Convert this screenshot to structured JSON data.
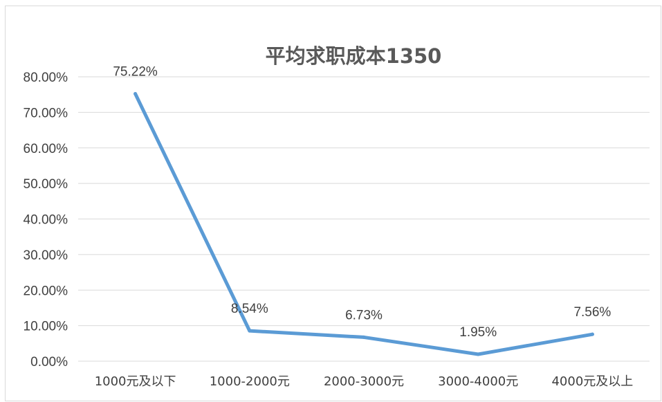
{
  "chart_data": {
    "type": "line",
    "title": "平均求职成本1350",
    "categories": [
      "1000元及以下",
      "1000-2000元",
      "2000-3000元",
      "3000-4000元",
      "4000元及以上"
    ],
    "values": [
      75.22,
      8.54,
      6.73,
      1.95,
      7.56
    ],
    "data_labels": [
      "75.22%",
      "8.54%",
      "6.73%",
      "1.95%",
      "7.56%"
    ],
    "y_ticks": [
      "0.00%",
      "10.00%",
      "20.00%",
      "30.00%",
      "40.00%",
      "50.00%",
      "60.00%",
      "70.00%",
      "80.00%"
    ],
    "ylim": [
      0,
      80
    ],
    "grid": true,
    "legend": "none",
    "line_color": "#5B9BD5"
  }
}
